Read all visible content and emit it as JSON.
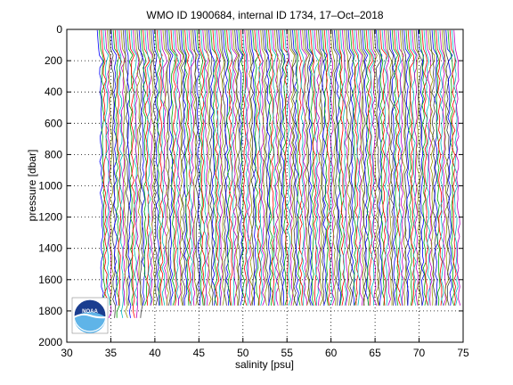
{
  "chart_data": {
    "type": "line",
    "title": "WMO ID 1900684, internal ID 1734, 17–Oct–2018",
    "xlabel": "salinity [psu]",
    "ylabel": "pressure [dbar]",
    "xlim": [
      30,
      75
    ],
    "ylim": [
      0,
      2000
    ],
    "y_reversed": true,
    "xticks": [
      30,
      35,
      40,
      45,
      50,
      55,
      60,
      65,
      70,
      75
    ],
    "yticks": [
      0,
      200,
      400,
      600,
      800,
      1000,
      1200,
      1400,
      1600,
      1800,
      2000
    ],
    "grid": true,
    "grid_style": "dotted",
    "series_colors": [
      "#0000ff",
      "#00aa00",
      "#ff0000",
      "#00bfbf",
      "#bf00bf",
      "#999900",
      "#404040"
    ],
    "profiles": {
      "description_of_layout": "waterfall of successive salinity profiles, each shifted to the right",
      "count": 180,
      "offset_start": 33.7,
      "offset_end": 74.2,
      "surface_pressure": 5,
      "max_pressure": 1800,
      "short_profile_max_pressure": 1855
    }
  },
  "logo": {
    "name": "noaa-logo",
    "text": "NOAA"
  }
}
